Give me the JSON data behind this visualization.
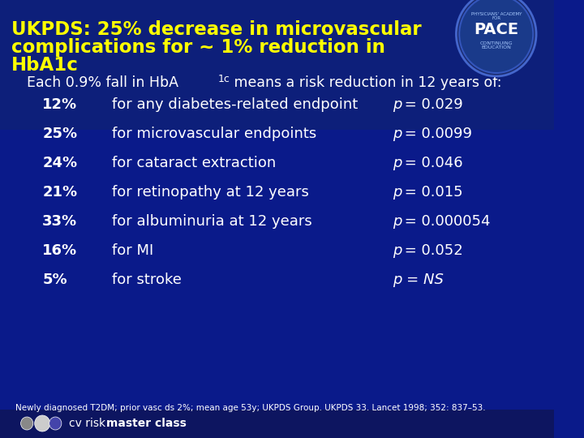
{
  "title_line1": "UKPDS: 25% decrease in microvascular",
  "title_line2": "complications for ~ 1% reduction in",
  "title_line3": "HbA1c",
  "subtitle": "Each 0.9% fall in HbA",
  "subtitle_sub": "1c",
  "subtitle_end": " means a risk reduction in 12 years of:",
  "rows": [
    {
      "pct": "12%",
      "desc": "for any diabetes-related endpoint",
      "pval": "p = 0.029",
      "italic_p": true
    },
    {
      "pct": "25%",
      "desc": "for microvascular endpoints",
      "pval": "p = 0.0099",
      "italic_p": true
    },
    {
      "pct": "24%",
      "desc": "for cataract extraction",
      "pval": "p = 0.046",
      "italic_p": true
    },
    {
      "pct": "21%",
      "desc": "for retinopathy at 12 years",
      "pval": "p = 0.015",
      "italic_p": true
    },
    {
      "pct": "33%",
      "desc": "for albuminuria at 12 years",
      "pval": "p = 0.000054",
      "italic_p": true
    },
    {
      "pct": "16%",
      "desc": "for MI",
      "pval": "p = 0.052",
      "italic_p": true
    },
    {
      "pct": "5%",
      "desc": "for stroke",
      "pval": "p = NS",
      "italic_p": true
    }
  ],
  "footnote": "Newly diagnosed T2DM; prior vasc ds 2%; mean age 53y; UKPDS Group. UKPDS 33. Lancet 1998; 352: 837–53.",
  "bg_color_top": "#0a1a6e",
  "bg_color": "#0a1a8a",
  "title_color": "#ffff00",
  "text_color": "#ffffff",
  "subtitle_color": "#ffffff",
  "footer_bg": "#1a3a9a",
  "logo_area_color": "#1a2a7e"
}
